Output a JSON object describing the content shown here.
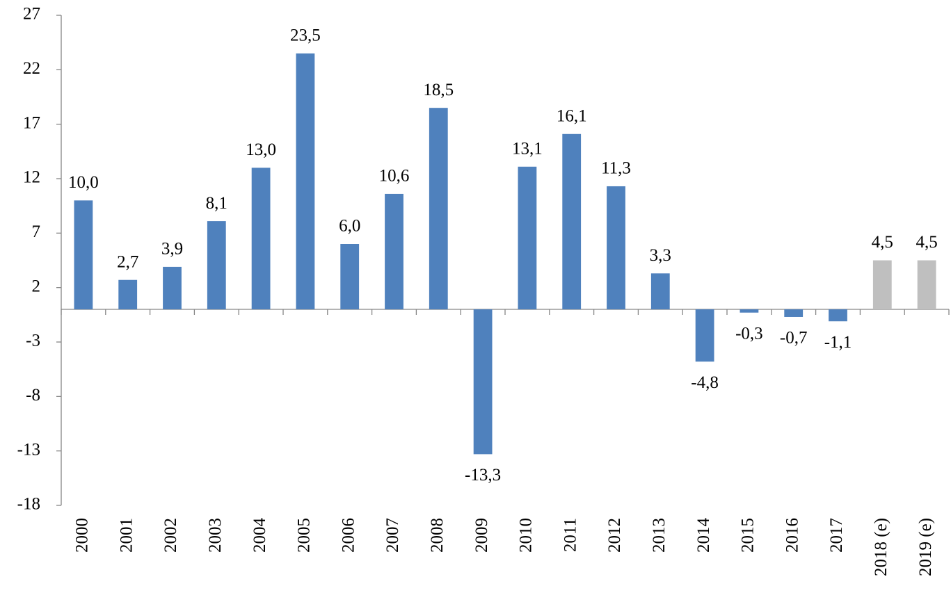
{
  "chart_data": {
    "type": "bar",
    "categories": [
      "2000",
      "2001",
      "2002",
      "2003",
      "2004",
      "2005",
      "2006",
      "2007",
      "2008",
      "2009",
      "2010",
      "2011",
      "2012",
      "2013",
      "2014",
      "2015",
      "2016",
      "2017",
      "2018 (e)",
      "2019 (e)"
    ],
    "values": [
      10.0,
      2.7,
      3.9,
      8.1,
      13.0,
      23.5,
      6.0,
      10.6,
      18.5,
      -13.3,
      13.1,
      16.1,
      11.3,
      3.3,
      -4.8,
      -0.3,
      -0.7,
      -1.1,
      4.5,
      4.5
    ],
    "value_labels": [
      "10,0",
      "2,7",
      "3,9",
      "8,1",
      "13,0",
      "23,5",
      "6,0",
      "10,6",
      "18,5",
      "-13,3",
      "13,1",
      "16,1",
      "11,3",
      "3,3",
      "-4,8",
      "-0,3",
      "-0,7",
      "-1,1",
      "4,5",
      "4,5"
    ],
    "colors": [
      "#4f81bd",
      "#4f81bd",
      "#4f81bd",
      "#4f81bd",
      "#4f81bd",
      "#4f81bd",
      "#4f81bd",
      "#4f81bd",
      "#4f81bd",
      "#4f81bd",
      "#4f81bd",
      "#4f81bd",
      "#4f81bd",
      "#4f81bd",
      "#4f81bd",
      "#4f81bd",
      "#4f81bd",
      "#4f81bd",
      "#bfbfbf",
      "#bfbfbf"
    ],
    "ylim": [
      -18,
      27
    ],
    "yticks": [
      -18,
      -13,
      -8,
      -3,
      2,
      7,
      12,
      17,
      22,
      27
    ],
    "grid": false
  }
}
